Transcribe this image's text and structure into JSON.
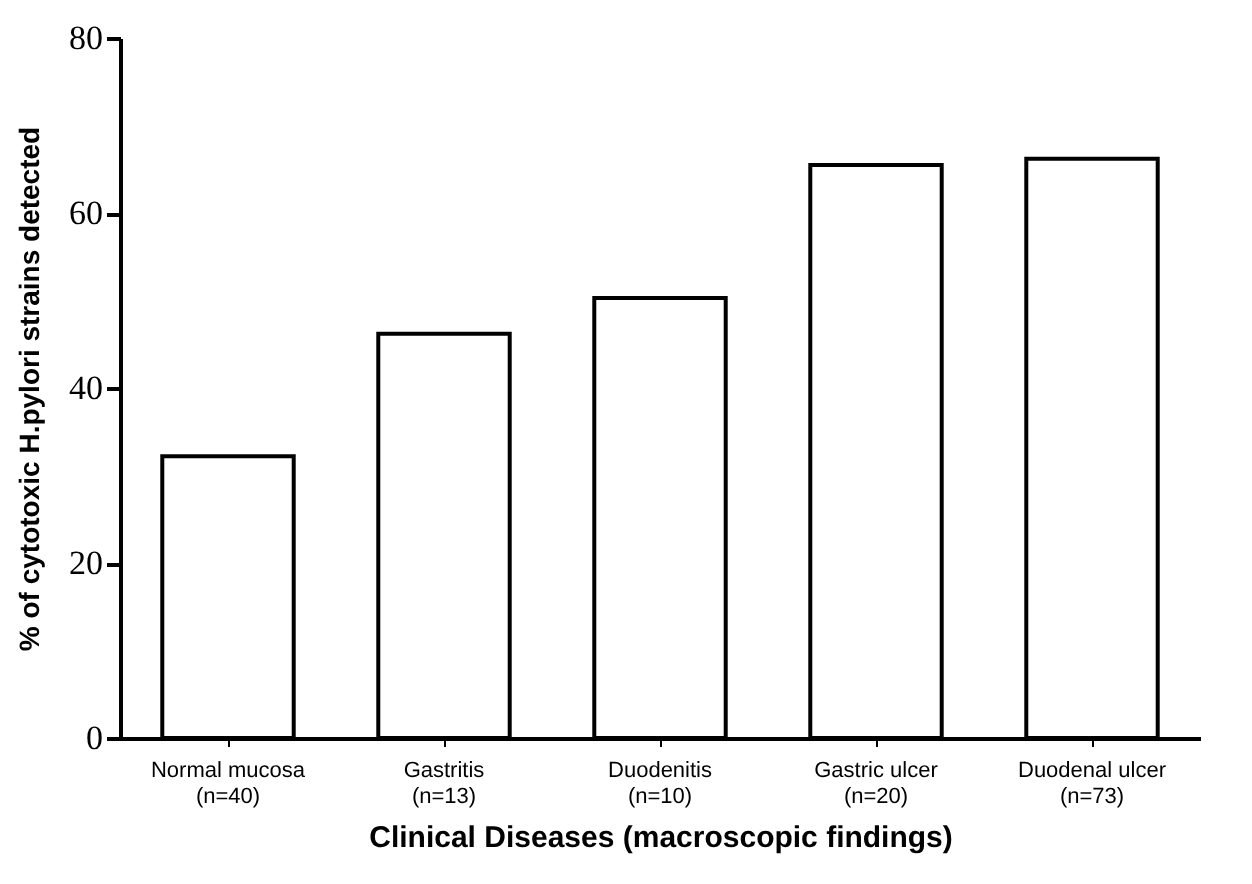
{
  "chart_data": {
    "type": "bar",
    "xlabel": "Clinical Diseases (macroscopic findings)",
    "ylabel": "% of cytotoxic H.pylori strains detected",
    "categories": [
      "Normal mucosa\n(n=40)",
      "Gastritis\n(n=13)",
      "Duodenitis\n(n=10)",
      "Gastric ulcer\n(n=20)",
      "Duodenal ulcer\n(n=73)"
    ],
    "values": [
      32.2,
      46.2,
      50.3,
      65.5,
      66.2
    ],
    "color": "#ffffff",
    "ylim": [
      0,
      80
    ],
    "yticks": [
      0,
      20,
      40,
      60,
      80
    ],
    "grid": false
  }
}
